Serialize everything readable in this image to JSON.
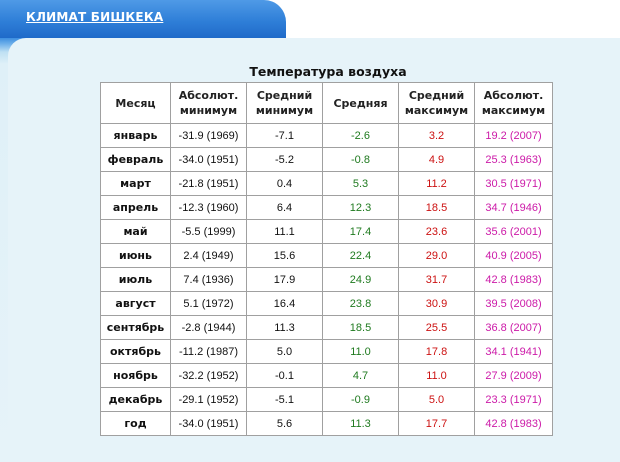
{
  "header": {
    "title": "КЛИМАТ БИШКЕКА"
  },
  "table": {
    "caption": "Температура воздуха",
    "headers": [
      {
        "line1": "Месяц",
        "line2": ""
      },
      {
        "line1": "Абсолют.",
        "line2": "минимум"
      },
      {
        "line1": "Средний",
        "line2": "минимум"
      },
      {
        "line1": "Средняя",
        "line2": ""
      },
      {
        "line1": "Средний",
        "line2": "максимум"
      },
      {
        "line1": "Абсолют.",
        "line2": "максимум"
      }
    ],
    "rows": [
      {
        "month": "январь",
        "abs_min": "-31.9 (1969)",
        "avg_min": "-7.1",
        "avg": "-2.6",
        "avg_max": "3.2",
        "abs_max": "19.2 (2007)"
      },
      {
        "month": "февраль",
        "abs_min": "-34.0 (1951)",
        "avg_min": "-5.2",
        "avg": "-0.8",
        "avg_max": "4.9",
        "abs_max": "25.3 (1963)"
      },
      {
        "month": "март",
        "abs_min": "-21.8 (1951)",
        "avg_min": "0.4",
        "avg": "5.3",
        "avg_max": "11.2",
        "abs_max": "30.5 (1971)"
      },
      {
        "month": "апрель",
        "abs_min": "-12.3 (1960)",
        "avg_min": "6.4",
        "avg": "12.3",
        "avg_max": "18.5",
        "abs_max": "34.7 (1946)"
      },
      {
        "month": "май",
        "abs_min": "-5.5 (1999)",
        "avg_min": "11.1",
        "avg": "17.4",
        "avg_max": "23.6",
        "abs_max": "35.6 (2001)"
      },
      {
        "month": "июнь",
        "abs_min": "2.4 (1949)",
        "avg_min": "15.6",
        "avg": "22.4",
        "avg_max": "29.0",
        "abs_max": "40.9 (2005)"
      },
      {
        "month": "июль",
        "abs_min": "7.4 (1936)",
        "avg_min": "17.9",
        "avg": "24.9",
        "avg_max": "31.7",
        "abs_max": "42.8 (1983)"
      },
      {
        "month": "август",
        "abs_min": "5.1 (1972)",
        "avg_min": "16.4",
        "avg": "23.8",
        "avg_max": "30.9",
        "abs_max": "39.5 (2008)"
      },
      {
        "month": "сентябрь",
        "abs_min": "-2.8 (1944)",
        "avg_min": "11.3",
        "avg": "18.5",
        "avg_max": "25.5",
        "abs_max": "36.8 (2007)"
      },
      {
        "month": "октябрь",
        "abs_min": "-11.2 (1987)",
        "avg_min": "5.0",
        "avg": "11.0",
        "avg_max": "17.8",
        "abs_max": "34.1 (1941)"
      },
      {
        "month": "ноябрь",
        "abs_min": "-32.2 (1952)",
        "avg_min": "-0.1",
        "avg": "4.7",
        "avg_max": "11.0",
        "abs_max": "27.9 (2009)"
      },
      {
        "month": "декабрь",
        "abs_min": "-29.1 (1952)",
        "avg_min": "-5.1",
        "avg": "-0.9",
        "avg_max": "5.0",
        "abs_max": "23.3 (1971)"
      },
      {
        "month": "год",
        "abs_min": "-34.0 (1951)",
        "avg_min": "5.6",
        "avg": "11.3",
        "avg_max": "17.7",
        "abs_max": "42.8 (1983)"
      }
    ]
  },
  "colors": {
    "header_tab": "#2f7fd8",
    "panel_bg": "#e6f3f9",
    "avg_text": "#1f7a1f",
    "avg_max_text": "#cc1111",
    "abs_max_text": "#cc1aa8"
  }
}
